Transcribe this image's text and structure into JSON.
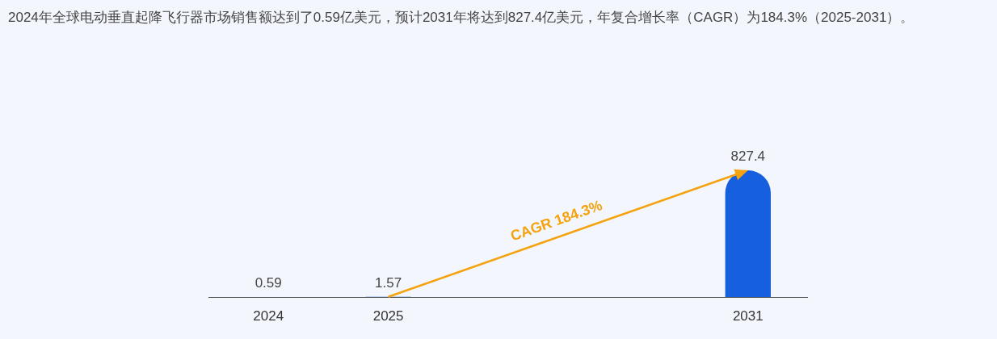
{
  "chart_data": {
    "type": "bar",
    "title": "2024年全球电动垂直起降飞行器市场销售额达到了0.59亿美元，预计2031年将达到827.4亿美元，年复合增长率（CAGR）为184.3%（2025-2031）。",
    "categories": [
      "2024",
      "2025",
      null,
      null,
      "2031"
    ],
    "values": [
      0.59,
      1.57,
      null,
      null,
      827.4
    ],
    "color": "#1660e0",
    "data_labels": true,
    "annotations": [
      "CAGR 184.3%"
    ]
  }
}
